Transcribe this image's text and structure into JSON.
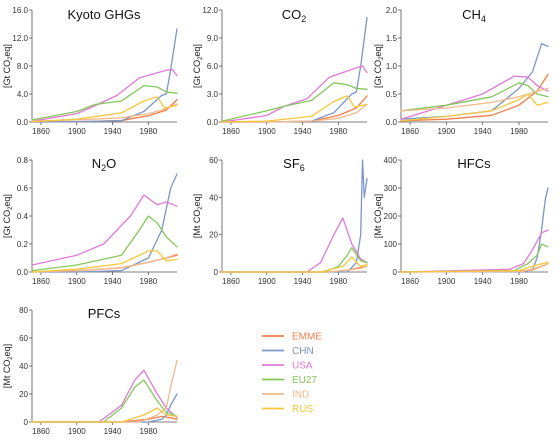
{
  "chart_data": [
    {
      "type": "line",
      "title": "Kyoto GHGs",
      "ylabel": "[Gt CO2eq]",
      "x_ticks": [
        "1860",
        "1900",
        "1940",
        "1980"
      ],
      "y_ticks": [
        "0.0",
        "4.0",
        "8.0",
        "12.0",
        "16.0"
      ],
      "xlim": [
        1850,
        2012
      ],
      "ylim": [
        0,
        16
      ],
      "series": [
        {
          "name": "EMME",
          "color": "#f07f4a",
          "x": [
            1850,
            1900,
            1950,
            1980,
            2000,
            2012
          ],
          "y": [
            0.0,
            0.05,
            0.2,
            0.9,
            1.7,
            3.2
          ]
        },
        {
          "name": "CHN",
          "color": "#7b96c8",
          "x": [
            1850,
            1900,
            1950,
            1975,
            1995,
            2000,
            2005,
            2012
          ],
          "y": [
            0.0,
            0.05,
            0.2,
            1.5,
            3.8,
            4.0,
            7.5,
            13.3
          ]
        },
        {
          "name": "USA",
          "color": "#e07ad8",
          "x": [
            1850,
            1900,
            1920,
            1945,
            1970,
            2000,
            2007,
            2012
          ],
          "y": [
            0.1,
            1.2,
            2.3,
            3.8,
            6.3,
            7.4,
            7.5,
            6.6
          ]
        },
        {
          "name": "EU27",
          "color": "#84c85a",
          "x": [
            1850,
            1900,
            1920,
            1950,
            1975,
            1990,
            2000,
            2012
          ],
          "y": [
            0.3,
            1.5,
            2.5,
            3.0,
            5.2,
            5.0,
            4.3,
            4.1
          ]
        },
        {
          "name": "IND",
          "color": "#f2b98a",
          "x": [
            1850,
            1900,
            1950,
            1980,
            2000,
            2012
          ],
          "y": [
            0.1,
            0.3,
            0.6,
            1.2,
            1.9,
            2.6
          ]
        },
        {
          "name": "RUS",
          "color": "#f5c83c",
          "x": [
            1850,
            1900,
            1950,
            1975,
            1990,
            1998,
            2012
          ],
          "y": [
            0.05,
            0.4,
            1.3,
            3.0,
            3.6,
            2.0,
            2.4
          ]
        }
      ]
    },
    {
      "type": "line",
      "title": "CO",
      "title_sub": "2",
      "ylabel": "[Gt CO2eq]",
      "x_ticks": [
        "1860",
        "1900",
        "1940",
        "1980"
      ],
      "y_ticks": [
        "0.0",
        "3.0",
        "6.0",
        "9.0",
        "12.0"
      ],
      "xlim": [
        1850,
        2012
      ],
      "ylim": [
        0,
        12
      ],
      "series": [
        {
          "name": "EMME",
          "color": "#f07f4a",
          "x": [
            1850,
            1900,
            1950,
            1980,
            2000,
            2012
          ],
          "y": [
            0.0,
            0.0,
            0.1,
            0.7,
            1.5,
            2.8
          ]
        },
        {
          "name": "CHN",
          "color": "#7b96c8",
          "x": [
            1850,
            1900,
            1950,
            1975,
            1995,
            2000,
            2005,
            2012
          ],
          "y": [
            0.0,
            0.0,
            0.1,
            1.0,
            3.0,
            3.2,
            6.0,
            11.2
          ]
        },
        {
          "name": "USA",
          "color": "#e07ad8",
          "x": [
            1850,
            1900,
            1920,
            1945,
            1970,
            2000,
            2007,
            2012
          ],
          "y": [
            0.0,
            0.7,
            1.7,
            2.5,
            4.8,
            5.8,
            6.0,
            5.3
          ]
        },
        {
          "name": "EU27",
          "color": "#84c85a",
          "x": [
            1850,
            1900,
            1920,
            1950,
            1975,
            1990,
            2000,
            2012
          ],
          "y": [
            0.1,
            1.2,
            1.7,
            2.3,
            4.2,
            4.0,
            3.6,
            3.5
          ]
        },
        {
          "name": "IND",
          "color": "#f2b98a",
          "x": [
            1850,
            1900,
            1950,
            1980,
            2000,
            2012
          ],
          "y": [
            0.0,
            0.0,
            0.1,
            0.4,
            1.0,
            1.9
          ]
        },
        {
          "name": "RUS",
          "color": "#f5c83c",
          "x": [
            1850,
            1900,
            1950,
            1975,
            1990,
            1998,
            2012
          ],
          "y": [
            0.0,
            0.1,
            0.6,
            2.2,
            2.8,
            1.6,
            1.9
          ]
        }
      ]
    },
    {
      "type": "line",
      "title": "CH",
      "title_sub": "4",
      "ylabel": "[Gt CO2eq]",
      "x_ticks": [
        "1860",
        "1900",
        "1940",
        "1980"
      ],
      "y_ticks": [
        "0.0",
        "0.5",
        "1.0",
        "1.5",
        "2.0"
      ],
      "xlim": [
        1850,
        2012
      ],
      "ylim": [
        0,
        2
      ],
      "series": [
        {
          "name": "EMME",
          "color": "#f07f4a",
          "x": [
            1850,
            1900,
            1950,
            1980,
            2000,
            2012
          ],
          "y": [
            0.02,
            0.05,
            0.12,
            0.3,
            0.55,
            0.85
          ]
        },
        {
          "name": "CHN",
          "color": "#7b96c8",
          "x": [
            1850,
            1900,
            1950,
            1980,
            1995,
            2005,
            2012
          ],
          "y": [
            0.05,
            0.1,
            0.2,
            0.6,
            0.9,
            1.4,
            1.35
          ]
        },
        {
          "name": "USA",
          "color": "#e07ad8",
          "x": [
            1850,
            1900,
            1940,
            1975,
            1990,
            2000,
            2012
          ],
          "y": [
            0.05,
            0.3,
            0.5,
            0.82,
            0.8,
            0.65,
            0.55
          ]
        },
        {
          "name": "EU27",
          "color": "#84c85a",
          "x": [
            1850,
            1900,
            1950,
            1980,
            1990,
            2000,
            2012
          ],
          "y": [
            0.2,
            0.3,
            0.45,
            0.7,
            0.65,
            0.5,
            0.45
          ]
        },
        {
          "name": "IND",
          "color": "#f2b98a",
          "x": [
            1850,
            1900,
            1950,
            1980,
            2000,
            2012
          ],
          "y": [
            0.2,
            0.25,
            0.35,
            0.45,
            0.55,
            0.6
          ]
        },
        {
          "name": "RUS",
          "color": "#f5c83c",
          "x": [
            1850,
            1900,
            1950,
            1980,
            1990,
            2000,
            2012
          ],
          "y": [
            0.02,
            0.1,
            0.2,
            0.4,
            0.5,
            0.3,
            0.35
          ]
        }
      ]
    },
    {
      "type": "line",
      "title": "N",
      "title_sub": "2",
      "title_after": "O",
      "ylabel": "[Gt CO2eq]",
      "x_ticks": [
        "1860",
        "1900",
        "1940",
        "1980"
      ],
      "y_ticks": [
        "0.0",
        "0.2",
        "0.4",
        "0.6",
        "0.8"
      ],
      "xlim": [
        1850,
        2012
      ],
      "ylim": [
        0,
        0.8
      ],
      "series": [
        {
          "name": "EMME",
          "color": "#f07f4a",
          "x": [
            1850,
            1900,
            1950,
            1980,
            2000,
            2012
          ],
          "y": [
            0.0,
            0.01,
            0.03,
            0.07,
            0.1,
            0.12
          ]
        },
        {
          "name": "CHN",
          "color": "#7b96c8",
          "x": [
            1850,
            1900,
            1950,
            1980,
            1995,
            2005,
            2012
          ],
          "y": [
            0.0,
            0.0,
            0.01,
            0.1,
            0.3,
            0.6,
            0.7
          ]
        },
        {
          "name": "USA",
          "color": "#e07ad8",
          "x": [
            1850,
            1900,
            1930,
            1960,
            1975,
            1990,
            2000,
            2012
          ],
          "y": [
            0.05,
            0.12,
            0.2,
            0.4,
            0.55,
            0.48,
            0.5,
            0.47
          ]
        },
        {
          "name": "EU27",
          "color": "#84c85a",
          "x": [
            1850,
            1900,
            1950,
            1970,
            1980,
            1990,
            2000,
            2012
          ],
          "y": [
            0.01,
            0.05,
            0.12,
            0.3,
            0.4,
            0.35,
            0.25,
            0.18
          ]
        },
        {
          "name": "IND",
          "color": "#f2b98a",
          "x": [
            1850,
            1900,
            1950,
            1980,
            2000,
            2012
          ],
          "y": [
            0.0,
            0.01,
            0.03,
            0.07,
            0.1,
            0.13
          ]
        },
        {
          "name": "RUS",
          "color": "#f5c83c",
          "x": [
            1850,
            1900,
            1950,
            1980,
            1990,
            2000,
            2012
          ],
          "y": [
            0.0,
            0.02,
            0.06,
            0.15,
            0.15,
            0.08,
            0.09
          ]
        }
      ]
    },
    {
      "type": "line",
      "title": "SF",
      "title_sub": "6",
      "ylabel": "[Mt CO2eq]",
      "x_ticks": [
        "1860",
        "1900",
        "1940",
        "1980"
      ],
      "y_ticks": [
        "0",
        "20",
        "40",
        "60"
      ],
      "xlim": [
        1850,
        2012
      ],
      "ylim": [
        0,
        60
      ],
      "series": [
        {
          "name": "EMME",
          "color": "#f07f4a",
          "x": [
            1850,
            1970,
            1990,
            2000,
            2012
          ],
          "y": [
            0,
            0,
            1,
            2,
            3
          ]
        },
        {
          "name": "CHN",
          "color": "#7b96c8",
          "x": [
            1850,
            1990,
            2000,
            2005,
            2007,
            2009,
            2012
          ],
          "y": [
            0,
            0,
            5,
            20,
            60,
            40,
            50
          ]
        },
        {
          "name": "USA",
          "color": "#e07ad8",
          "x": [
            1850,
            1945,
            1960,
            1975,
            1985,
            1995,
            2005,
            2012
          ],
          "y": [
            0,
            0,
            5,
            20,
            29,
            15,
            7,
            5
          ]
        },
        {
          "name": "EU27",
          "color": "#84c85a",
          "x": [
            1850,
            1965,
            1980,
            1990,
            1995,
            2005,
            2012
          ],
          "y": [
            0,
            0,
            3,
            9,
            13,
            6,
            5
          ]
        },
        {
          "name": "IND",
          "color": "#f2b98a",
          "x": [
            1850,
            1970,
            1990,
            2005,
            2012
          ],
          "y": [
            0,
            0,
            1,
            2,
            3
          ]
        },
        {
          "name": "RUS",
          "color": "#f5c83c",
          "x": [
            1850,
            1960,
            1985,
            1995,
            2005,
            2012
          ],
          "y": [
            0,
            0,
            3,
            8,
            3,
            4
          ]
        }
      ]
    },
    {
      "type": "line",
      "title": "HFCs",
      "ylabel": "[Mt CO2eq]",
      "x_ticks": [
        "1860",
        "1900",
        "1940",
        "1980"
      ],
      "y_ticks": [
        "0",
        "100",
        "200",
        "300",
        "400"
      ],
      "xlim": [
        1850,
        2012
      ],
      "ylim": [
        0,
        400
      ],
      "series": [
        {
          "name": "EMME",
          "color": "#f07f4a",
          "x": [
            1850,
            1980,
            1995,
            2005,
            2012
          ],
          "y": [
            0,
            2,
            8,
            20,
            30
          ]
        },
        {
          "name": "CHN",
          "color": "#7b96c8",
          "x": [
            1850,
            1985,
            1995,
            2000,
            2005,
            2009,
            2012
          ],
          "y": [
            0,
            1,
            10,
            50,
            150,
            260,
            300
          ]
        },
        {
          "name": "USA",
          "color": "#e07ad8",
          "x": [
            1850,
            1970,
            1985,
            1995,
            2005,
            2012
          ],
          "y": [
            0,
            10,
            30,
            80,
            140,
            150
          ]
        },
        {
          "name": "EU27",
          "color": "#84c85a",
          "x": [
            1850,
            1975,
            1990,
            2000,
            2005,
            2012
          ],
          "y": [
            0,
            5,
            30,
            60,
            100,
            90
          ]
        },
        {
          "name": "IND",
          "color": "#f2b98a",
          "x": [
            1850,
            1985,
            2000,
            2012
          ],
          "y": [
            0,
            2,
            15,
            30
          ]
        },
        {
          "name": "RUS",
          "color": "#f5c83c",
          "x": [
            1850,
            1980,
            1990,
            2000,
            2012
          ],
          "y": [
            0,
            5,
            15,
            25,
            35
          ]
        }
      ]
    },
    {
      "type": "line",
      "title": "PFCs",
      "ylabel": "[Mt CO2eq]",
      "x_ticks": [
        "1860",
        "1900",
        "1940",
        "1980"
      ],
      "y_ticks": [
        "0",
        "20",
        "40",
        "60",
        "80"
      ],
      "xlim": [
        1850,
        2012
      ],
      "ylim": [
        0,
        80
      ],
      "series": [
        {
          "name": "EMME",
          "color": "#f07f4a",
          "x": [
            1850,
            1950,
            1980,
            1995,
            2005,
            2012
          ],
          "y": [
            0,
            0,
            2,
            4,
            3,
            2
          ]
        },
        {
          "name": "CHN",
          "color": "#7b96c8",
          "x": [
            1850,
            1980,
            1995,
            2000,
            2005,
            2012
          ],
          "y": [
            0,
            0,
            2,
            5,
            12,
            20
          ]
        },
        {
          "name": "USA",
          "color": "#e07ad8",
          "x": [
            1850,
            1925,
            1950,
            1965,
            1975,
            1990,
            2000,
            2012
          ],
          "y": [
            0,
            0,
            12,
            30,
            37,
            20,
            10,
            3
          ]
        },
        {
          "name": "EU27",
          "color": "#84c85a",
          "x": [
            1850,
            1930,
            1950,
            1965,
            1975,
            1990,
            2000,
            2012
          ],
          "y": [
            0,
            0,
            10,
            25,
            30,
            15,
            7,
            4
          ]
        },
        {
          "name": "IND",
          "color": "#f2b98a",
          "x": [
            1850,
            1970,
            1990,
            2000,
            2005,
            2012
          ],
          "y": [
            0,
            0,
            5,
            10,
            25,
            44
          ]
        },
        {
          "name": "RUS",
          "color": "#f5c83c",
          "x": [
            1850,
            1950,
            1975,
            1990,
            2000,
            2012
          ],
          "y": [
            0,
            0,
            5,
            10,
            5,
            4
          ]
        }
      ]
    }
  ],
  "legend": {
    "position": "center-right",
    "entries": [
      {
        "label": "EMME",
        "color": "#f07f4a"
      },
      {
        "label": "CHN",
        "color": "#7b96c8"
      },
      {
        "label": "USA",
        "color": "#e07ad8"
      },
      {
        "label": "EU27",
        "color": "#84c85a"
      },
      {
        "label": "IND",
        "color": "#f2b98a"
      },
      {
        "label": "RUS",
        "color": "#f5c83c"
      }
    ]
  }
}
